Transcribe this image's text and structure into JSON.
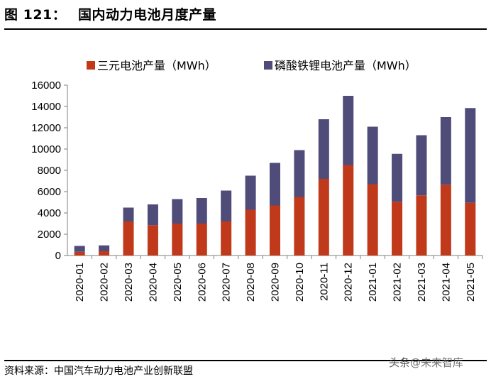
{
  "figure": {
    "label": "图 121：",
    "title": "国内动力电池月度产量"
  },
  "source": "资料来源：中国汽车动力电池产业创新联盟",
  "watermark": {
    "head": "头条",
    "account": "@未来智库"
  },
  "colors": {
    "ternary": "#C0391B",
    "lfp": "#4F4C7A",
    "axis": "#7F7F7F"
  },
  "chart_data": {
    "type": "bar",
    "stacked": true,
    "categories": [
      "2020-01",
      "2020-02",
      "2020-03",
      "2020-04",
      "2020-05",
      "2020-06",
      "2020-07",
      "2020-08",
      "2020-09",
      "2020-10",
      "2020-11",
      "2020-12",
      "2021-01",
      "2021-02",
      "2021-03",
      "2021-04",
      "2021-05"
    ],
    "series": [
      {
        "name": "三元电池产量（MWh）",
        "color": "#C0391B",
        "values": [
          350,
          400,
          3200,
          2850,
          3000,
          3000,
          3200,
          4300,
          4700,
          5500,
          7200,
          8500,
          6700,
          5050,
          5650,
          6650,
          4950
        ]
      },
      {
        "name": "磷酸铁锂电池产量（MWh）",
        "color": "#4F4C7A",
        "values": [
          550,
          550,
          1300,
          1950,
          2300,
          2400,
          2900,
          3200,
          4000,
          4400,
          5600,
          6500,
          5400,
          4500,
          5650,
          6350,
          8900
        ]
      }
    ],
    "ylim": [
      0,
      16000
    ],
    "yticks": [
      "0",
      "2000",
      "4000",
      "6000",
      "8000",
      "10000",
      "12000",
      "14000",
      "16000"
    ],
    "grid": false,
    "legend_position": "top"
  }
}
